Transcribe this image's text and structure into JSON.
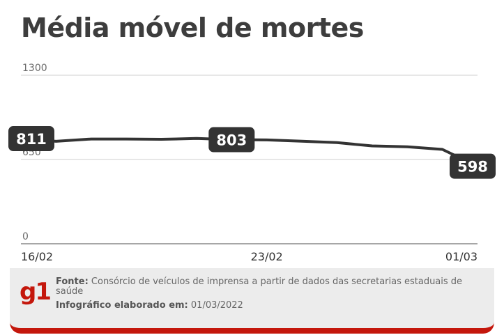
{
  "title": "Média móvel de mortes",
  "chart_data": {
    "type": "line",
    "title": "Média móvel de mortes",
    "x_tick_labels": [
      "16/02",
      "23/02",
      "01/03"
    ],
    "y_tick_labels": [
      "1300",
      "650",
      "0"
    ],
    "ylim": [
      0,
      1300
    ],
    "grid": true,
    "series": [
      {
        "values": [
          811,
          790,
          808,
          808,
          806,
          812,
          803,
          801,
          791,
          780,
          755,
          748,
          728,
          598
        ]
      }
    ],
    "data_labels": [
      {
        "index": 0,
        "text": "811"
      },
      {
        "index": 6,
        "text": "803"
      },
      {
        "index": 13,
        "text": "598"
      }
    ],
    "colors": {
      "line": "#333333",
      "label_bg": "#333333",
      "grid": "#cfcfcf"
    }
  },
  "footer": {
    "logo": "g1",
    "source_label": "Fonte:",
    "source_text": " Consórcio de veículos de imprensa a partir de dados das secretarias estaduais de saúde",
    "made_label": "Infográfico elaborado em:",
    "made_date": " 01/03/2022",
    "brand_color": "#c4170c"
  }
}
